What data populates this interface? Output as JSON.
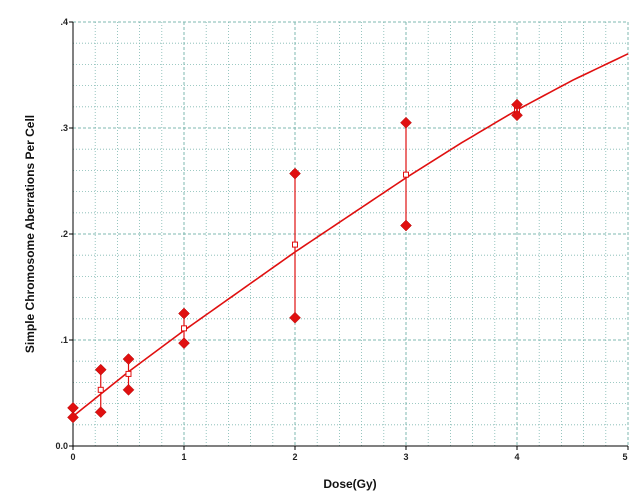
{
  "chart_data": {
    "type": "scatter",
    "title": "",
    "xlabel": "Dose(Gy)",
    "ylabel": "Simple Chromosome Aberrations Per Cell",
    "xlim": [
      0,
      5
    ],
    "ylim": [
      0,
      0.4
    ],
    "x_ticks": [
      "0",
      "1",
      "2",
      "3",
      "4",
      "5"
    ],
    "y_ticks": [
      ".4",
      ".3",
      ".2",
      ".1",
      "0.0"
    ],
    "y_tick_values": [
      0.4,
      0.3,
      0.2,
      0.1,
      0.0
    ],
    "grid": true,
    "colors": {
      "series": "#e01010",
      "grid": "#7fb8b0",
      "axis": "#000000"
    },
    "observed": {
      "x": [
        0,
        0,
        0.25,
        0.25,
        0.5,
        0.5,
        1,
        1,
        2,
        2,
        3,
        3,
        4,
        4
      ],
      "y": [
        0.036,
        0.027,
        0.072,
        0.032,
        0.082,
        0.053,
        0.125,
        0.097,
        0.257,
        0.121,
        0.305,
        0.208,
        0.322,
        0.312
      ]
    },
    "means": {
      "x": [
        0.25,
        0.5,
        1,
        2,
        3,
        4
      ],
      "y": [
        0.053,
        0.068,
        0.111,
        0.19,
        0.256,
        0.317
      ]
    },
    "error_bars": [
      {
        "x": 0.25,
        "low": 0.032,
        "high": 0.072
      },
      {
        "x": 0.5,
        "low": 0.053,
        "high": 0.082
      },
      {
        "x": 1,
        "low": 0.097,
        "high": 0.125
      },
      {
        "x": 2,
        "low": 0.121,
        "high": 0.257
      },
      {
        "x": 3,
        "low": 0.208,
        "high": 0.305
      },
      {
        "x": 4,
        "low": 0.312,
        "high": 0.322
      }
    ],
    "fit_curve": {
      "x": [
        0,
        0.5,
        1,
        1.5,
        2,
        2.5,
        3,
        3.5,
        4,
        4.5,
        5
      ],
      "y": [
        0.028,
        0.07,
        0.109,
        0.146,
        0.183,
        0.218,
        0.253,
        0.286,
        0.317,
        0.345,
        0.37
      ]
    }
  }
}
